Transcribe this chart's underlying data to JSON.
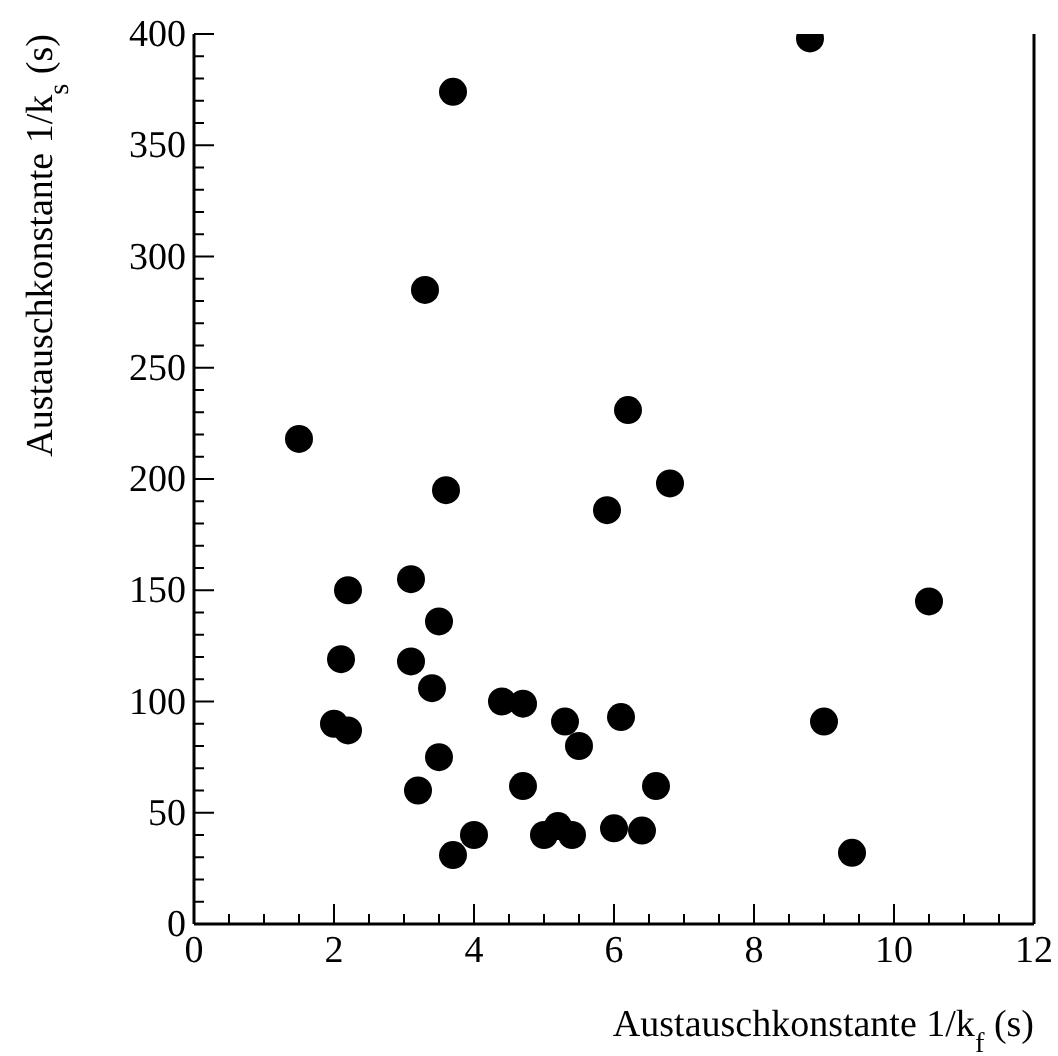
{
  "chart_data": {
    "type": "scatter",
    "xlabel": "Austauschkonstante 1/k$_{f}$ (s)",
    "ylabel": "Austauschkonstante 1/k$_{s}$ (s)",
    "x": [
      1.5,
      3.7,
      3.3,
      8.8,
      6.2,
      6.8,
      3.6,
      5.9,
      2.2,
      3.1,
      10.5,
      3.5,
      2.1,
      3.1,
      3.4,
      4.4,
      4.7,
      2.0,
      2.2,
      5.3,
      6.1,
      9.0,
      5.5,
      3.5,
      4.7,
      6.6,
      3.2,
      4.0,
      5.0,
      5.2,
      5.4,
      6.0,
      6.4,
      3.7,
      9.4
    ],
    "values": [
      218,
      374,
      285,
      398,
      231,
      198,
      195,
      186,
      150,
      155,
      145,
      136,
      119,
      118,
      106,
      100,
      99,
      90,
      87,
      91,
      93,
      91,
      80,
      75,
      62,
      62,
      60,
      40,
      40,
      44,
      40,
      43,
      42,
      31,
      32
    ],
    "color": "#000000",
    "marker": "circle",
    "xlim": [
      0,
      12
    ],
    "ylim": [
      0,
      400
    ],
    "xticks": [
      0,
      {
        "value": 0.5,
        "label": null
      },
      {
        "value": 1,
        "label": null
      },
      {
        "value": 1.5,
        "label": null
      },
      2,
      {
        "value": 2.5,
        "label": null
      },
      {
        "value": 3,
        "label": null
      },
      {
        "value": 3.5,
        "label": null
      },
      4,
      {
        "value": 4.5,
        "label": null
      },
      {
        "value": 5,
        "label": null
      },
      {
        "value": 5.5,
        "label": null
      },
      6,
      {
        "value": 6.5,
        "label": null
      },
      {
        "value": 7,
        "label": null
      },
      {
        "value": 7.5,
        "label": null
      },
      8,
      {
        "value": 8.5,
        "label": null
      },
      {
        "value": 9,
        "label": null
      },
      {
        "value": 9.5,
        "label": null
      },
      10,
      {
        "value": 10.5,
        "label": null
      },
      {
        "value": 11,
        "label": null
      },
      {
        "value": 11.5,
        "label": null
      },
      12
    ],
    "yticks": [
      0,
      {
        "value": 10,
        "label": null
      },
      {
        "value": 20,
        "label": null
      },
      {
        "value": 30,
        "label": null
      },
      {
        "value": 40,
        "label": null
      },
      50,
      {
        "value": 60,
        "label": null
      },
      {
        "value": 70,
        "label": null
      },
      {
        "value": 80,
        "label": null
      },
      {
        "value": 90,
        "label": null
      },
      100,
      {
        "value": 110,
        "label": null
      },
      {
        "value": 120,
        "label": null
      },
      {
        "value": 130,
        "label": null
      },
      {
        "value": 140,
        "label": null
      },
      150,
      {
        "value": 160,
        "label": null
      },
      {
        "value": 170,
        "label": null
      },
      {
        "value": 180,
        "label": null
      },
      {
        "value": 190,
        "label": null
      },
      200,
      {
        "value": 210,
        "label": null
      },
      {
        "value": 220,
        "label": null
      },
      {
        "value": 230,
        "label": null
      },
      {
        "value": 240,
        "label": null
      },
      250,
      {
        "value": 260,
        "label": null
      },
      {
        "value": 270,
        "label": null
      },
      {
        "value": 280,
        "label": null
      },
      {
        "value": 290,
        "label": null
      },
      300,
      {
        "value": 310,
        "label": null
      },
      {
        "value": 320,
        "label": null
      },
      {
        "value": 330,
        "label": null
      },
      {
        "value": 340,
        "label": null
      },
      350,
      {
        "value": 360,
        "label": null
      },
      {
        "value": 370,
        "label": null
      },
      {
        "value": 380,
        "label": null
      },
      {
        "value": 390,
        "label": null
      },
      400
    ]
  }
}
